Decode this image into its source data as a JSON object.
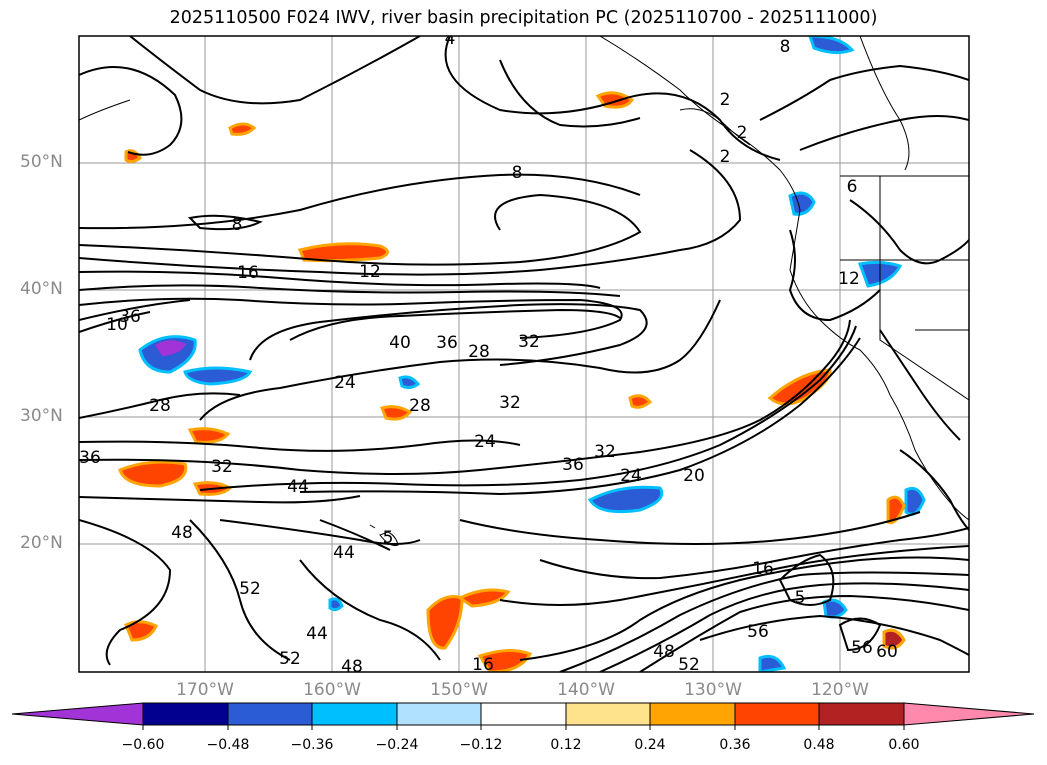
{
  "title": "2025110500 F024 IWV, river basin precipitation PC (2025110700 - 2025111000)",
  "lat_labels": [
    "50°N",
    "40°N",
    "30°N",
    "20°N"
  ],
  "lon_labels": [
    "170°W",
    "160°W",
    "150°W",
    "140°W",
    "130°W",
    "120°W"
  ],
  "contour_labels": [
    "4",
    "2",
    "8",
    "2",
    "2",
    "6",
    "8",
    "8",
    "16",
    "12",
    "12",
    "10",
    "36",
    "40",
    "36",
    "28",
    "32",
    "24",
    "28",
    "28",
    "24",
    "32",
    "36",
    "32",
    "36",
    "24",
    "20",
    "32",
    "44",
    "48",
    "44",
    "5",
    "52",
    "44",
    "52",
    "48",
    "16",
    "56",
    "56",
    "60",
    "52",
    "48",
    "5",
    "16"
  ],
  "colorbar": {
    "ticks": [
      "−0.60",
      "−0.48",
      "−0.36",
      "−0.24",
      "−0.12",
      "0.12",
      "0.24",
      "0.36",
      "0.48",
      "0.60"
    ],
    "colors": {
      "under": "#a233d6",
      "bin_1": "#01008f",
      "bin_2": "#2b5bd5",
      "bin_3": "#00bfff",
      "bin_4": "#b0e2ff",
      "bin_5": "#ffffff",
      "bin_6": "#ffe28b",
      "bin_7": "#ffa402",
      "bin_8": "#ff4402",
      "bin_9": "#b22223",
      "over": "#ff89ad"
    }
  }
}
